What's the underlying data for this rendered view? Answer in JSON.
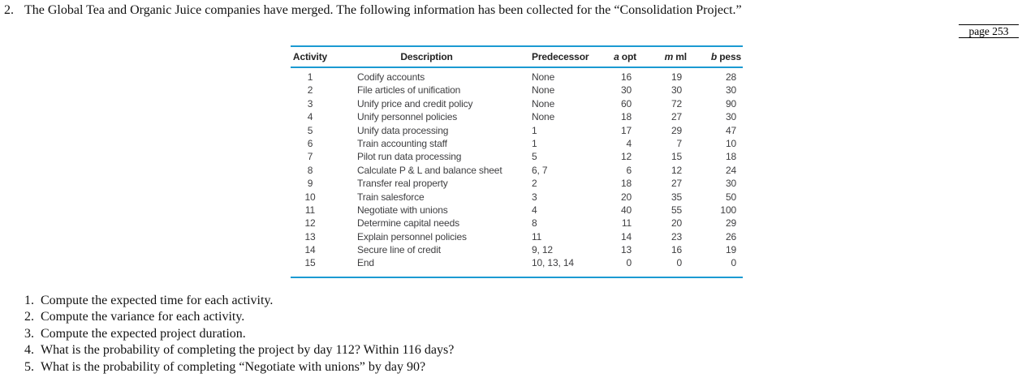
{
  "problem": {
    "number": "2.",
    "text": "The Global Tea and Organic Juice companies have merged. The following information has been collected for the “Consolidation Project.”"
  },
  "page_ref": "page 253",
  "table": {
    "rule_color": "#1b9ad2",
    "headers": {
      "activity": "Activity",
      "description": "Description",
      "predecessor": "Predecessor",
      "a_opt": [
        "a",
        "opt"
      ],
      "m_ml": [
        "m",
        "ml"
      ],
      "b_pess": [
        "b",
        "pess"
      ]
    },
    "rows": [
      {
        "activity": "1",
        "description": "Codify accounts",
        "predecessor": "None",
        "a": "16",
        "m": "19",
        "b": "28"
      },
      {
        "activity": "2",
        "description": "File articles of unification",
        "predecessor": "None",
        "a": "30",
        "m": "30",
        "b": "30"
      },
      {
        "activity": "3",
        "description": "Unify price and credit policy",
        "predecessor": "None",
        "a": "60",
        "m": "72",
        "b": "90"
      },
      {
        "activity": "4",
        "description": "Unify personnel policies",
        "predecessor": "None",
        "a": "18",
        "m": "27",
        "b": "30"
      },
      {
        "activity": "5",
        "description": "Unify data processing",
        "predecessor": "1",
        "a": "17",
        "m": "29",
        "b": "47"
      },
      {
        "activity": "6",
        "description": "Train accounting staff",
        "predecessor": "1",
        "a": "4",
        "m": "7",
        "b": "10"
      },
      {
        "activity": "7",
        "description": "Pilot run data processing",
        "predecessor": "5",
        "a": "12",
        "m": "15",
        "b": "18"
      },
      {
        "activity": "8",
        "description": "Calculate P & L and balance sheet",
        "predecessor": "6, 7",
        "a": "6",
        "m": "12",
        "b": "24"
      },
      {
        "activity": "9",
        "description": "Transfer real property",
        "predecessor": "2",
        "a": "18",
        "m": "27",
        "b": "30"
      },
      {
        "activity": "10",
        "description": "Train salesforce",
        "predecessor": "3",
        "a": "20",
        "m": "35",
        "b": "50"
      },
      {
        "activity": "11",
        "description": "Negotiate with unions",
        "predecessor": "4",
        "a": "40",
        "m": "55",
        "b": "100"
      },
      {
        "activity": "12",
        "description": "Determine capital needs",
        "predecessor": "8",
        "a": "11",
        "m": "20",
        "b": "29"
      },
      {
        "activity": "13",
        "description": "Explain personnel policies",
        "predecessor": "11",
        "a": "14",
        "m": "23",
        "b": "26"
      },
      {
        "activity": "14",
        "description": "Secure line of credit",
        "predecessor": "9, 12",
        "a": "13",
        "m": "16",
        "b": "19"
      },
      {
        "activity": "15",
        "description": "End",
        "predecessor": "10, 13, 14",
        "a": "0",
        "m": "0",
        "b": "0"
      }
    ]
  },
  "questions": [
    {
      "number": "1.",
      "text": "Compute the expected time for each activity."
    },
    {
      "number": "2.",
      "text": "Compute the variance for each activity."
    },
    {
      "number": "3.",
      "text": "Compute the expected project duration."
    },
    {
      "number": "4.",
      "text": "What is the probability of completing the project by day 112? Within 116 days?"
    },
    {
      "number": "5.",
      "text": "What is the probability of completing “Negotiate with unions” by day 90?"
    }
  ]
}
